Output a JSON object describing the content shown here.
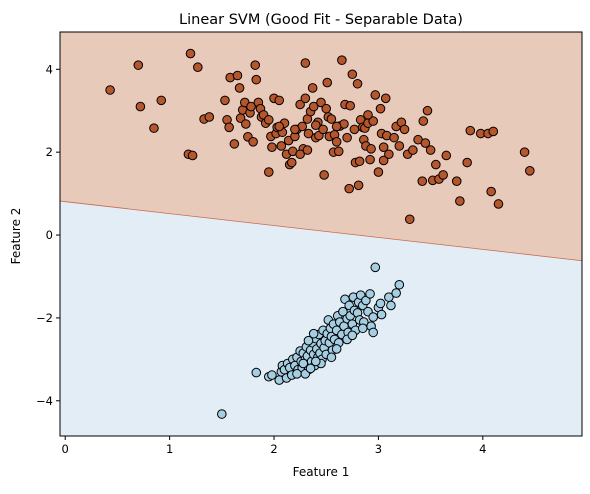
{
  "chart_data": {
    "type": "scatter",
    "title": "Linear SVM (Good Fit - Separable Data)",
    "xlabel": "Feature 1",
    "ylabel": "Feature 2",
    "xlim": [
      -0.05,
      4.95
    ],
    "ylim": [
      -4.85,
      4.9
    ],
    "xticks": [
      0,
      1,
      2,
      3,
      4
    ],
    "yticks": [
      -4,
      -2,
      0,
      2,
      4
    ],
    "grid": false,
    "legend": "none",
    "decision_boundary": {
      "x": [
        -0.05,
        4.95
      ],
      "y": [
        0.82,
        -0.62
      ]
    },
    "regions": {
      "upper": {
        "color": "#e8cabb",
        "class": "upper"
      },
      "lower": {
        "color": "#e2edf5",
        "class": "lower"
      }
    },
    "boundary_color": "#c86a4f",
    "series": [
      {
        "color": "#b5562c",
        "points": [
          [
            0.43,
            3.5
          ],
          [
            0.7,
            4.1
          ],
          [
            0.72,
            3.1
          ],
          [
            0.85,
            2.58
          ],
          [
            0.92,
            3.25
          ],
          [
            1.18,
            1.95
          ],
          [
            1.22,
            1.92
          ],
          [
            1.2,
            4.38
          ],
          [
            1.27,
            4.05
          ],
          [
            1.33,
            2.8
          ],
          [
            1.38,
            2.85
          ],
          [
            1.53,
            3.25
          ],
          [
            1.55,
            2.78
          ],
          [
            1.57,
            2.6
          ],
          [
            1.58,
            3.8
          ],
          [
            1.62,
            2.2
          ],
          [
            1.65,
            3.85
          ],
          [
            1.67,
            3.55
          ],
          [
            1.68,
            2.82
          ],
          [
            1.7,
            3.02
          ],
          [
            1.72,
            3.2
          ],
          [
            1.73,
            2.68
          ],
          [
            1.75,
            2.37
          ],
          [
            1.77,
            2.95
          ],
          [
            1.78,
            3.1
          ],
          [
            1.8,
            2.25
          ],
          [
            1.82,
            4.1
          ],
          [
            1.83,
            3.75
          ],
          [
            1.85,
            3.2
          ],
          [
            1.87,
            3.05
          ],
          [
            1.88,
            2.85
          ],
          [
            1.9,
            2.9
          ],
          [
            1.92,
            2.7
          ],
          [
            1.95,
            1.52
          ],
          [
            1.97,
            2.38
          ],
          [
            1.98,
            2.12
          ],
          [
            2.0,
            3.3
          ],
          [
            2.02,
            2.45
          ],
          [
            2.03,
            2.6
          ],
          [
            2.05,
            3.25
          ],
          [
            2.07,
            2.15
          ],
          [
            2.08,
            2.48
          ],
          [
            2.1,
            2.7
          ],
          [
            2.12,
            1.95
          ],
          [
            2.14,
            2.28
          ],
          [
            2.15,
            1.7
          ],
          [
            2.17,
            1.75
          ],
          [
            2.18,
            2.02
          ],
          [
            2.2,
            2.38
          ],
          [
            2.22,
            2.55
          ],
          [
            2.25,
            3.15
          ],
          [
            2.27,
            2.62
          ],
          [
            2.28,
            2.08
          ],
          [
            2.3,
            4.15
          ],
          [
            2.3,
            3.3
          ],
          [
            2.32,
            2.8
          ],
          [
            2.33,
            2.45
          ],
          [
            2.35,
            2.98
          ],
          [
            2.37,
            3.55
          ],
          [
            2.38,
            3.1
          ],
          [
            2.4,
            2.35
          ],
          [
            2.42,
            2.72
          ],
          [
            2.43,
            2.4
          ],
          [
            2.45,
            3.2
          ],
          [
            2.47,
            2.55
          ],
          [
            2.48,
            1.45
          ],
          [
            2.5,
            3.05
          ],
          [
            2.51,
            3.68
          ],
          [
            2.52,
            2.85
          ],
          [
            2.53,
            2.38
          ],
          [
            2.55,
            2.8
          ],
          [
            2.57,
            2.0
          ],
          [
            2.58,
            2.42
          ],
          [
            2.6,
            2.25
          ],
          [
            2.62,
            2.02
          ],
          [
            2.63,
            2.63
          ],
          [
            2.65,
            4.22
          ],
          [
            2.67,
            2.68
          ],
          [
            2.68,
            3.15
          ],
          [
            2.7,
            2.35
          ],
          [
            2.72,
            1.12
          ],
          [
            2.73,
            3.12
          ],
          [
            2.75,
            3.88
          ],
          [
            2.77,
            2.55
          ],
          [
            2.78,
            1.75
          ],
          [
            2.8,
            3.65
          ],
          [
            2.81,
            1.2
          ],
          [
            2.82,
            1.78
          ],
          [
            2.83,
            2.78
          ],
          [
            2.85,
            2.6
          ],
          [
            2.86,
            2.3
          ],
          [
            2.87,
            2.58
          ],
          [
            2.88,
            2.15
          ],
          [
            2.9,
            2.7
          ],
          [
            2.92,
            1.82
          ],
          [
            2.93,
            2.08
          ],
          [
            2.95,
            2.75
          ],
          [
            2.97,
            3.38
          ],
          [
            3.0,
            1.52
          ],
          [
            3.02,
            3.05
          ],
          [
            3.03,
            2.45
          ],
          [
            3.05,
            1.8
          ],
          [
            3.07,
            3.3
          ],
          [
            3.08,
            2.4
          ],
          [
            3.1,
            1.95
          ],
          [
            3.15,
            2.35
          ],
          [
            3.17,
            2.62
          ],
          [
            3.2,
            2.15
          ],
          [
            3.22,
            2.72
          ],
          [
            3.25,
            2.55
          ],
          [
            3.28,
            1.95
          ],
          [
            3.3,
            0.38
          ],
          [
            3.33,
            2.05
          ],
          [
            3.38,
            2.3
          ],
          [
            3.42,
            1.3
          ],
          [
            3.43,
            2.75
          ],
          [
            3.45,
            2.22
          ],
          [
            3.47,
            3.0
          ],
          [
            3.5,
            2.05
          ],
          [
            3.52,
            1.32
          ],
          [
            3.55,
            1.7
          ],
          [
            3.58,
            1.35
          ],
          [
            3.62,
            1.45
          ],
          [
            3.65,
            1.92
          ],
          [
            3.75,
            1.3
          ],
          [
            3.78,
            0.82
          ],
          [
            3.85,
            1.75
          ],
          [
            3.88,
            2.52
          ],
          [
            3.98,
            2.45
          ],
          [
            4.05,
            2.45
          ],
          [
            4.08,
            1.05
          ],
          [
            4.1,
            2.5
          ],
          [
            4.15,
            0.75
          ],
          [
            4.4,
            2.0
          ],
          [
            4.45,
            1.55
          ],
          [
            2.05,
            2.62
          ],
          [
            1.95,
            2.78
          ],
          [
            2.25,
            1.95
          ],
          [
            2.6,
            2.62
          ],
          [
            2.4,
            2.65
          ],
          [
            2.9,
            2.9
          ],
          [
            3.05,
            2.12
          ],
          [
            2.2,
            2.55
          ],
          [
            2.32,
            2.05
          ]
        ]
      },
      {
        "color": "#a6cee3",
        "points": [
          [
            1.5,
            -4.32
          ],
          [
            1.83,
            -3.32
          ],
          [
            1.95,
            -3.42
          ],
          [
            1.98,
            -3.38
          ],
          [
            2.05,
            -3.5
          ],
          [
            2.07,
            -3.3
          ],
          [
            2.08,
            -3.15
          ],
          [
            2.1,
            -3.25
          ],
          [
            2.12,
            -3.45
          ],
          [
            2.13,
            -3.1
          ],
          [
            2.15,
            -3.2
          ],
          [
            2.17,
            -3.38
          ],
          [
            2.18,
            -3.0
          ],
          [
            2.2,
            -3.15
          ],
          [
            2.22,
            -2.95
          ],
          [
            2.23,
            -3.25
          ],
          [
            2.25,
            -2.8
          ],
          [
            2.26,
            -3.05
          ],
          [
            2.27,
            -3.2
          ],
          [
            2.28,
            -2.85
          ],
          [
            2.3,
            -3.0
          ],
          [
            2.31,
            -2.7
          ],
          [
            2.32,
            -2.92
          ],
          [
            2.33,
            -3.25
          ],
          [
            2.35,
            -2.78
          ],
          [
            2.36,
            -3.05
          ],
          [
            2.37,
            -2.6
          ],
          [
            2.38,
            -2.88
          ],
          [
            2.39,
            -3.15
          ],
          [
            2.4,
            -2.5
          ],
          [
            2.41,
            -2.75
          ],
          [
            2.42,
            -2.95
          ],
          [
            2.43,
            -2.4
          ],
          [
            2.44,
            -2.85
          ],
          [
            2.45,
            -2.62
          ],
          [
            2.46,
            -3.0
          ],
          [
            2.47,
            -2.3
          ],
          [
            2.48,
            -2.72
          ],
          [
            2.49,
            -2.55
          ],
          [
            2.5,
            -2.88
          ],
          [
            2.51,
            -2.38
          ],
          [
            2.52,
            -2.05
          ],
          [
            2.53,
            -2.6
          ],
          [
            2.54,
            -2.25
          ],
          [
            2.55,
            -2.45
          ],
          [
            2.56,
            -2.78
          ],
          [
            2.57,
            -2.15
          ],
          [
            2.58,
            -2.52
          ],
          [
            2.6,
            -2.3
          ],
          [
            2.61,
            -1.95
          ],
          [
            2.62,
            -2.6
          ],
          [
            2.63,
            -2.1
          ],
          [
            2.65,
            -2.4
          ],
          [
            2.66,
            -1.85
          ],
          [
            2.67,
            -2.2
          ],
          [
            2.68,
            -1.55
          ],
          [
            2.7,
            -2.02
          ],
          [
            2.71,
            -2.35
          ],
          [
            2.72,
            -1.7
          ],
          [
            2.73,
            -1.95
          ],
          [
            2.75,
            -2.15
          ],
          [
            2.76,
            -1.5
          ],
          [
            2.77,
            -1.82
          ],
          [
            2.78,
            -2.3
          ],
          [
            2.8,
            -1.88
          ],
          [
            2.81,
            -1.62
          ],
          [
            2.82,
            -2.05
          ],
          [
            2.83,
            -1.45
          ],
          [
            2.85,
            -1.7
          ],
          [
            2.86,
            -2.1
          ],
          [
            2.88,
            -1.58
          ],
          [
            2.9,
            -1.85
          ],
          [
            2.92,
            -1.42
          ],
          [
            2.93,
            -2.2
          ],
          [
            2.95,
            -2.35
          ],
          [
            2.97,
            -0.78
          ],
          [
            3.0,
            -1.75
          ],
          [
            3.02,
            -1.65
          ],
          [
            3.03,
            -1.92
          ],
          [
            3.1,
            -1.5
          ],
          [
            3.12,
            -1.7
          ],
          [
            3.17,
            -1.4
          ],
          [
            3.2,
            -1.2
          ],
          [
            2.22,
            -3.35
          ],
          [
            2.3,
            -3.35
          ],
          [
            2.35,
            -3.22
          ],
          [
            2.45,
            -3.1
          ],
          [
            2.55,
            -2.95
          ],
          [
            2.6,
            -2.75
          ],
          [
            2.7,
            -2.52
          ],
          [
            2.75,
            -2.42
          ],
          [
            2.85,
            -2.25
          ],
          [
            2.95,
            -1.98
          ],
          [
            2.4,
            -3.05
          ],
          [
            2.28,
            -3.1
          ],
          [
            2.33,
            -2.55
          ],
          [
            2.38,
            -2.38
          ]
        ]
      }
    ]
  }
}
